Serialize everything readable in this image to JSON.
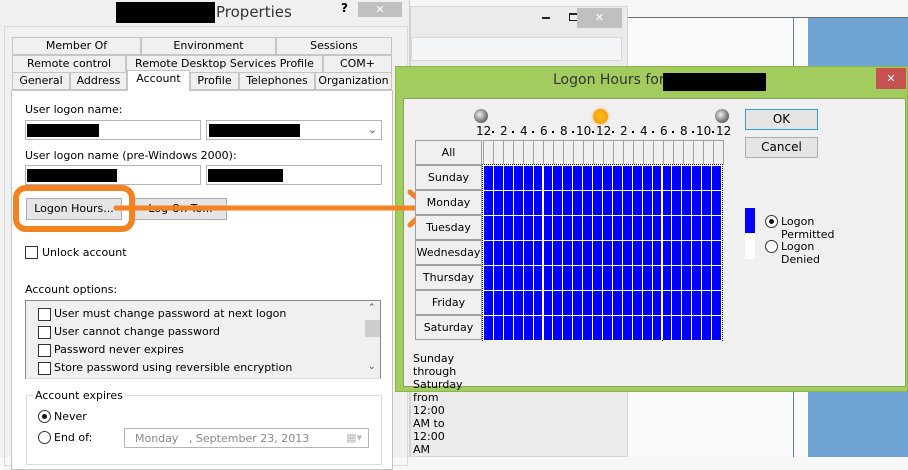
{
  "properties": {
    "title_suffix": "Properties",
    "help_label": "?",
    "close_label": "✕",
    "tabs_row1": [
      "Member Of",
      "Environment",
      "Sessions"
    ],
    "tabs_row2": [
      "Remote control",
      "Remote Desktop Services Profile",
      "COM+"
    ],
    "tabs_row3": [
      "General",
      "Address",
      "Account",
      "Profile",
      "Telephones",
      "Organization"
    ],
    "selected_tab": "Account",
    "user_logon_label": "User logon name:",
    "pre2000_label": "User logon name (pre-Windows 2000):",
    "logon_hours_button": "Logon Hours...",
    "log_on_to_button": "Log On To...",
    "unlock_label": "Unlock account",
    "account_options_label": "Account options:",
    "account_options": [
      {
        "label": "User must change password at next logon",
        "checked": false
      },
      {
        "label": "User cannot change password",
        "checked": false
      },
      {
        "label": "Password never expires",
        "checked": false
      },
      {
        "label": "Store password using reversible encryption",
        "checked": false
      }
    ],
    "account_expires_label": "Account expires",
    "never_label": "Never",
    "end_of_label": "End of:",
    "end_of_date_day": "Monday",
    "end_of_date": ", September 23, 2013",
    "expires_selection": "never"
  },
  "logon_hours": {
    "title": "Logon Hours for",
    "close_label": "✕",
    "hour_labels": [
      "12",
      "2",
      "4",
      "6",
      "8",
      "10",
      "12",
      "2",
      "4",
      "6",
      "8",
      "10",
      "12"
    ],
    "all_label": "All",
    "days": [
      "Sunday",
      "Monday",
      "Tuesday",
      "Wednesday",
      "Thursday",
      "Friday",
      "Saturday"
    ],
    "permitted": [
      "111111111111111111111111",
      "111111111111111111111111",
      "111111111111111111111111",
      "111111111111111111111111",
      "111111111111111111111111",
      "111111111111111111111111",
      "111111111111111111111111"
    ],
    "ok_label": "OK",
    "cancel_label": "Cancel",
    "legend_permitted": "Logon Permitted",
    "legend_denied": "Logon Denied",
    "legend_selection": "permitted",
    "status_text": "Sunday through Saturday from 12:00 AM to 12:00 AM",
    "colors": {
      "permitted": "#0000ff",
      "denied": "#ffffff",
      "frame": "#a2cd5e",
      "close": "#c75050",
      "highlight": "#f58220"
    }
  }
}
